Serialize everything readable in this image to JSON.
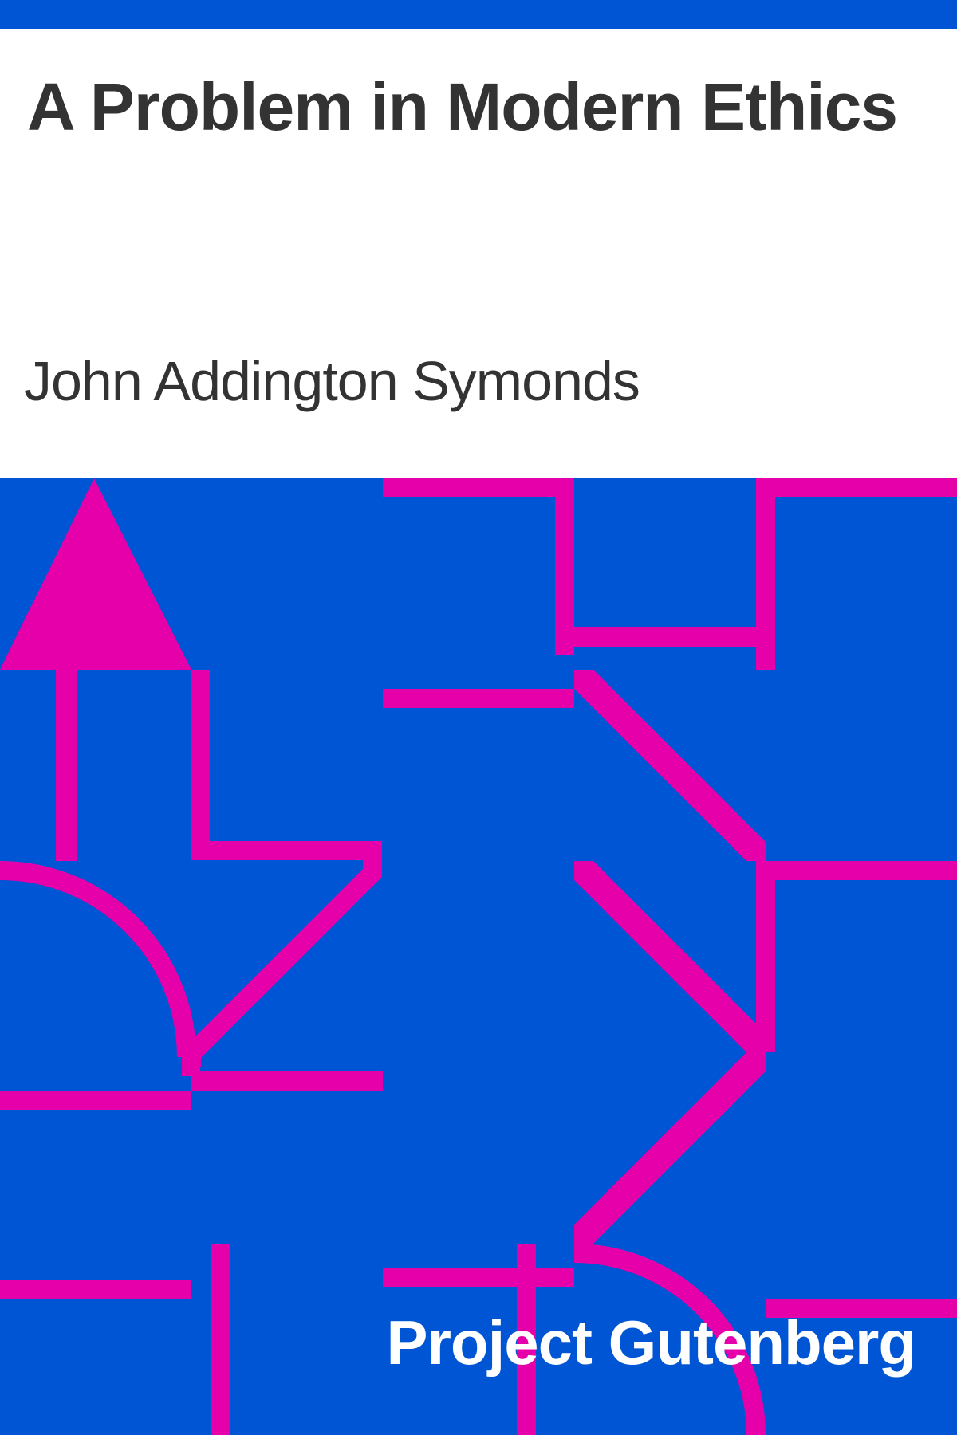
{
  "cover": {
    "title": "A Problem in Modern Ethics",
    "author": "John Addington Symonds",
    "publisher": "Project Gutenberg"
  },
  "colors": {
    "background": "#0055d4",
    "pattern": "#e600aa",
    "title_text": "#333333",
    "publisher_text": "#ffffff",
    "header_background": "#ffffff"
  }
}
